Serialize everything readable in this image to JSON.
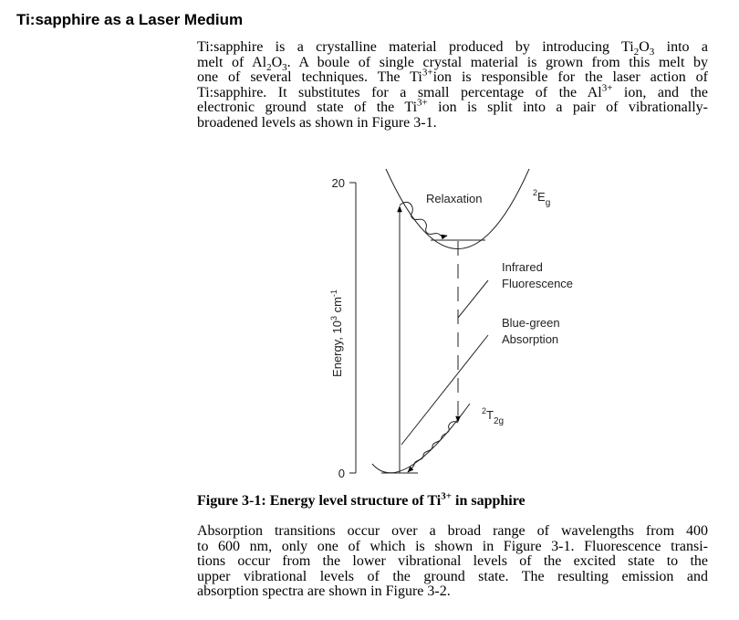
{
  "title": "Ti:sapphire as a Laser Medium",
  "intro": [
    [
      [
        "t",
        "Ti:sapphire is a crystalline material produced by introducing Ti"
      ],
      [
        "sub",
        "2"
      ],
      [
        "t",
        "O"
      ],
      [
        "sub",
        "3"
      ],
      [
        "t",
        " into a"
      ]
    ],
    [
      [
        "t",
        "melt of Al"
      ],
      [
        "sub",
        "2"
      ],
      [
        "t",
        "O"
      ],
      [
        "sub",
        "3"
      ],
      [
        "t",
        ". A boule of single crystal material is grown from this melt by"
      ]
    ],
    [
      [
        "t",
        "one of several techniques. The Ti"
      ],
      [
        "sup",
        "3+"
      ],
      [
        "t",
        "ion is responsible for the laser action of"
      ]
    ],
    [
      [
        "t",
        "Ti:sapphire. It substitutes for a small percentage of the Al"
      ],
      [
        "sup",
        "3+"
      ],
      [
        "t",
        " ion, and the"
      ]
    ],
    [
      [
        "t",
        "electronic ground state of the Ti"
      ],
      [
        "sup",
        "3+"
      ],
      [
        "t",
        " ion is split into a pair of vibrationally-"
      ]
    ],
    [
      [
        "t",
        "broadened levels as shown in Figure 3-1."
      ]
    ]
  ],
  "figure": {
    "y_axis_label": "Energy, 10",
    "y_axis_label_sup": "3",
    "y_axis_label_unit": " cm",
    "y_axis_label_unit_sup": "-1",
    "y_ticks": [
      "20",
      "0"
    ],
    "relaxation": "Relaxation",
    "upper_state": "2",
    "upper_state_main": "E",
    "upper_state_sub": "g",
    "lower_state": "2",
    "lower_state_main": "T",
    "lower_state_sub": "2g",
    "infrared_1": "Infrared",
    "infrared_2": "Fluorescence",
    "absorption_1": "Blue-green",
    "absorption_2": "Absorption"
  },
  "caption": [
    [
      "t",
      "Figure 3-1: Energy level structure of Ti"
    ],
    [
      "sup",
      "3+"
    ],
    [
      "t",
      " in sapphire"
    ]
  ],
  "body": [
    [
      [
        "t",
        "Absorption transitions occur over a broad range of wavelengths from 400"
      ]
    ],
    [
      [
        "t",
        "to 600 nm, only one of which is shown in Figure 3-1. Fluorescence transi-"
      ]
    ],
    [
      [
        "t",
        "tions occur from the lower vibrational levels of the excited state to the"
      ]
    ],
    [
      [
        "t",
        "upper vibrational levels of the ground state. The resulting emission and"
      ]
    ],
    [
      [
        "t",
        "absorption spectra are shown in Figure 3-2."
      ]
    ]
  ]
}
